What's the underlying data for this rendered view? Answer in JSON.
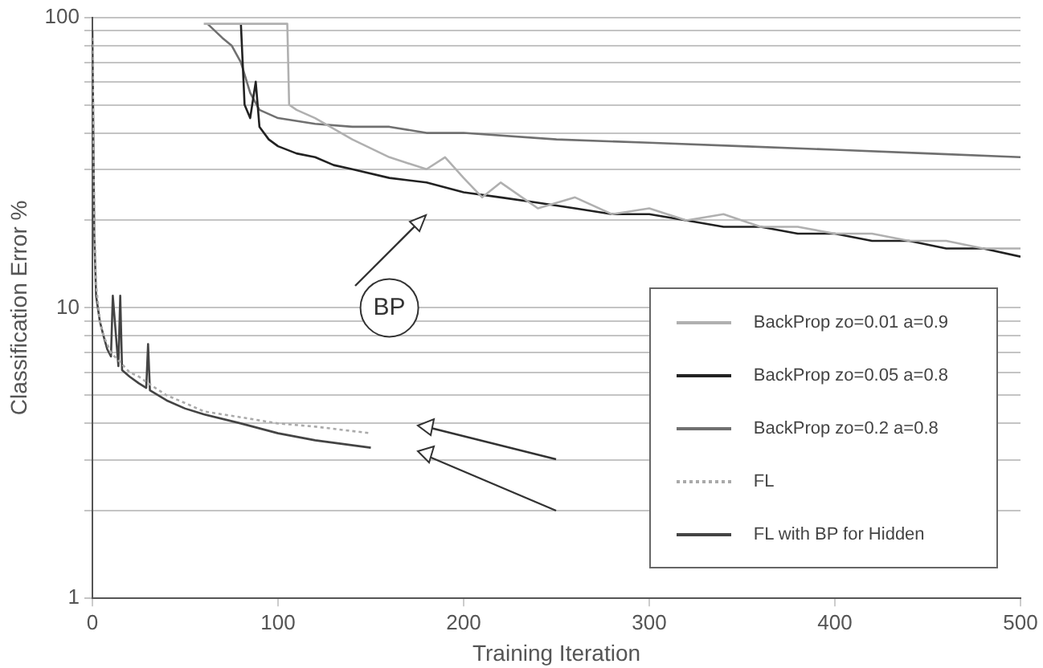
{
  "chart_data": {
    "type": "line",
    "xlabel": "Training Iteration",
    "ylabel": "Classification Error %",
    "xlim": [
      0,
      500
    ],
    "xticks": [
      0,
      100,
      200,
      300,
      400,
      500
    ],
    "ylim": [
      1,
      100
    ],
    "log": "y",
    "yticks": [
      1,
      {
        "value": 2,
        "label": null
      },
      {
        "value": 3,
        "label": null
      },
      {
        "value": 4,
        "label": null
      },
      {
        "value": 5,
        "label": null
      },
      {
        "value": 6,
        "label": null
      },
      {
        "value": 7,
        "label": null
      },
      {
        "value": 8,
        "label": null
      },
      {
        "value": 9,
        "label": null
      },
      10,
      {
        "value": 20,
        "label": null
      },
      {
        "value": 30,
        "label": null
      },
      {
        "value": 40,
        "label": null
      },
      {
        "value": 50,
        "label": null
      },
      {
        "value": 60,
        "label": null
      },
      {
        "value": 70,
        "label": null
      },
      {
        "value": 80,
        "label": null
      },
      {
        "value": 90,
        "label": null
      },
      100
    ],
    "grid": "y",
    "legend": "bottom right",
    "marker": "none",
    "annotations": [
      {
        "text": "BP",
        "x": 160,
        "y": 10
      }
    ],
    "series": [
      {
        "name": "BackProp zo=0.01 a=0.9",
        "color": "#b0b0b0",
        "x": [
          60,
          105,
          106,
          110,
          120,
          140,
          160,
          180,
          190,
          200,
          210,
          220,
          240,
          260,
          280,
          300,
          320,
          340,
          360,
          380,
          400,
          420,
          440,
          460,
          480,
          500
        ],
        "values": [
          95,
          95,
          50,
          48,
          45,
          38,
          33,
          30,
          33,
          28,
          24,
          27,
          22,
          24,
          21,
          22,
          20,
          21,
          19,
          19,
          18,
          18,
          17,
          17,
          16,
          16
        ]
      },
      {
        "name": "BackProp zo=0.05 a=0.8",
        "color": "#222222",
        "x": [
          80,
          82,
          85,
          88,
          90,
          95,
          100,
          110,
          120,
          130,
          140,
          160,
          180,
          200,
          220,
          240,
          260,
          280,
          300,
          320,
          340,
          360,
          380,
          400,
          420,
          440,
          460,
          480,
          500
        ],
        "values": [
          95,
          50,
          45,
          60,
          42,
          38,
          36,
          34,
          33,
          31,
          30,
          28,
          27,
          25,
          24,
          23,
          22,
          21,
          21,
          20,
          19,
          19,
          18,
          18,
          17,
          17,
          16,
          16,
          15
        ]
      },
      {
        "name": "BackProp zo=0.2 a=0.8",
        "color": "#707070",
        "x": [
          62,
          70,
          75,
          80,
          85,
          90,
          100,
          120,
          140,
          160,
          180,
          200,
          250,
          300,
          350,
          400,
          450,
          500
        ],
        "values": [
          95,
          85,
          80,
          70,
          55,
          48,
          45,
          43,
          42,
          42,
          40,
          40,
          38,
          37,
          36,
          35,
          34,
          33
        ]
      },
      {
        "name": "FL",
        "color": "#aaaaaa",
        "line_style": "dotted",
        "x": [
          0,
          1,
          2,
          4,
          6,
          8,
          10,
          15,
          20,
          25,
          30,
          40,
          50,
          60,
          80,
          100,
          120,
          150
        ],
        "values": [
          85,
          20,
          12,
          9,
          8,
          7.5,
          7,
          6.5,
          6,
          5.8,
          5.5,
          5,
          4.7,
          4.4,
          4.2,
          4,
          3.9,
          3.7
        ]
      },
      {
        "name": "FL with BP for Hidden",
        "color": "#444444",
        "x": [
          0,
          1,
          2,
          4,
          6,
          8,
          10,
          11,
          14,
          15,
          16,
          20,
          25,
          29,
          30,
          31,
          40,
          50,
          60,
          80,
          100,
          120,
          150
        ],
        "values": [
          90,
          18,
          11,
          9,
          8,
          7.2,
          6.8,
          11,
          6.3,
          11,
          6.1,
          5.8,
          5.5,
          5.3,
          7.5,
          5.2,
          4.8,
          4.5,
          4.3,
          4,
          3.7,
          3.5,
          3.3
        ]
      }
    ]
  }
}
